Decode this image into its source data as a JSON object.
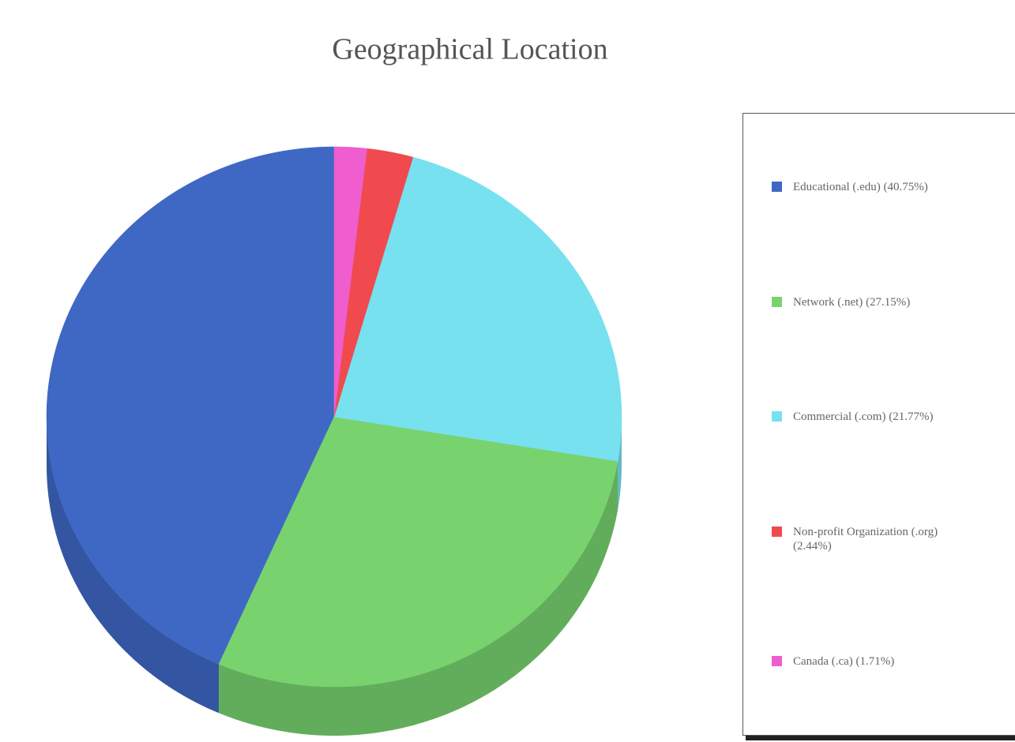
{
  "chart_data": {
    "type": "pie",
    "title": "Geographical Location",
    "categories": [
      "Educational (.edu)",
      "Network (.net)",
      "Commercial (.com)",
      "Non-profit Organization (.org)",
      "Canada (.ca)"
    ],
    "values": [
      40.75,
      27.15,
      21.77,
      2.44,
      1.71
    ],
    "value_labels": [
      "(40.75%)",
      "(27.15%)",
      "(21.77%)",
      "(2.44%)",
      "(1.71%)"
    ],
    "colors": [
      "#3f68c4",
      "#78d36f",
      "#77e1f0",
      "#f04a4e",
      "#ef5dcf"
    ],
    "legend": "right"
  }
}
